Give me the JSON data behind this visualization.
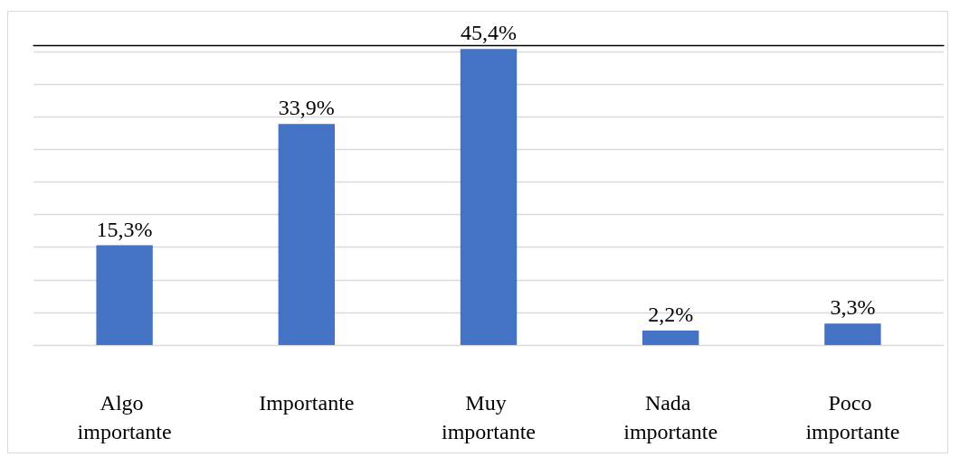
{
  "chart_data": {
    "type": "bar",
    "categories": [
      "Algo importante",
      "Importante",
      "Muy importante",
      "Nada importante",
      "Poco importante"
    ],
    "values": [
      15.3,
      33.9,
      45.4,
      2.2,
      3.3
    ],
    "color": "#4472c4",
    "value_labels": [
      "15,3%",
      "33,9%",
      "45,4%",
      "2,2%",
      "3,3%"
    ],
    "ylim": [
      0,
      46
    ],
    "yticks": [
      {
        "value": 0,
        "label": null
      },
      {
        "value": 5,
        "label": null
      },
      {
        "value": 10,
        "label": null
      },
      {
        "value": 15,
        "label": null
      },
      {
        "value": 20,
        "label": null
      },
      {
        "value": 25,
        "label": null
      },
      {
        "value": 30,
        "label": null
      },
      {
        "value": 35,
        "label": null
      },
      {
        "value": 40,
        "label": null
      },
      {
        "value": 45,
        "label": null
      }
    ],
    "grid": "y",
    "tick_labels": "x"
  }
}
